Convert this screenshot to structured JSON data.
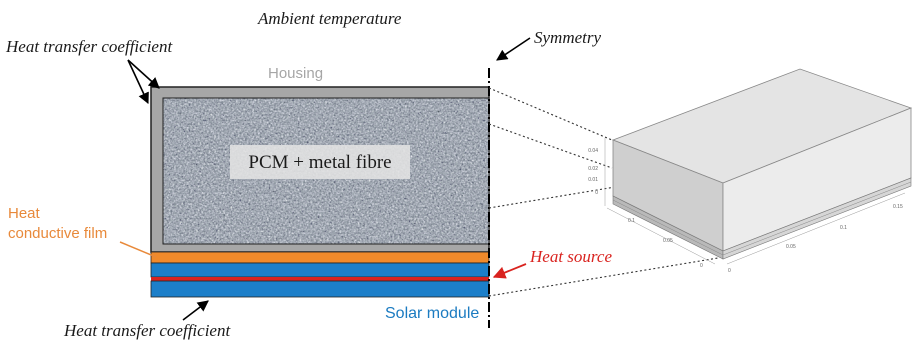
{
  "labels": {
    "ambient": "Ambient temperature",
    "htc_top": "Heat transfer coefficient",
    "symmetry": "Symmetry",
    "housing": "Housing",
    "pcm": "PCM + metal fibre",
    "film_line1": "Heat",
    "film_line2": "conductive film",
    "heat_source": "Heat source",
    "solar_module": "Solar module",
    "htc_bottom": "Heat transfer coefficient"
  },
  "axis_ticks": {
    "vertical": [
      "0.04",
      "0.02",
      "0.01",
      "0"
    ],
    "depth": [
      "0.1",
      "0.05",
      "0"
    ],
    "width": [
      "0.15",
      "0.1",
      "0.05",
      "0"
    ]
  },
  "colors": {
    "housing": "#a7a7a7",
    "film": "#f08a2b",
    "solar": "#1c7fc9",
    "heat_source": "#d9231f",
    "film_text": "#e8893a",
    "solar_text": "#1b7bc1",
    "housing_text": "#a6a6a6"
  }
}
